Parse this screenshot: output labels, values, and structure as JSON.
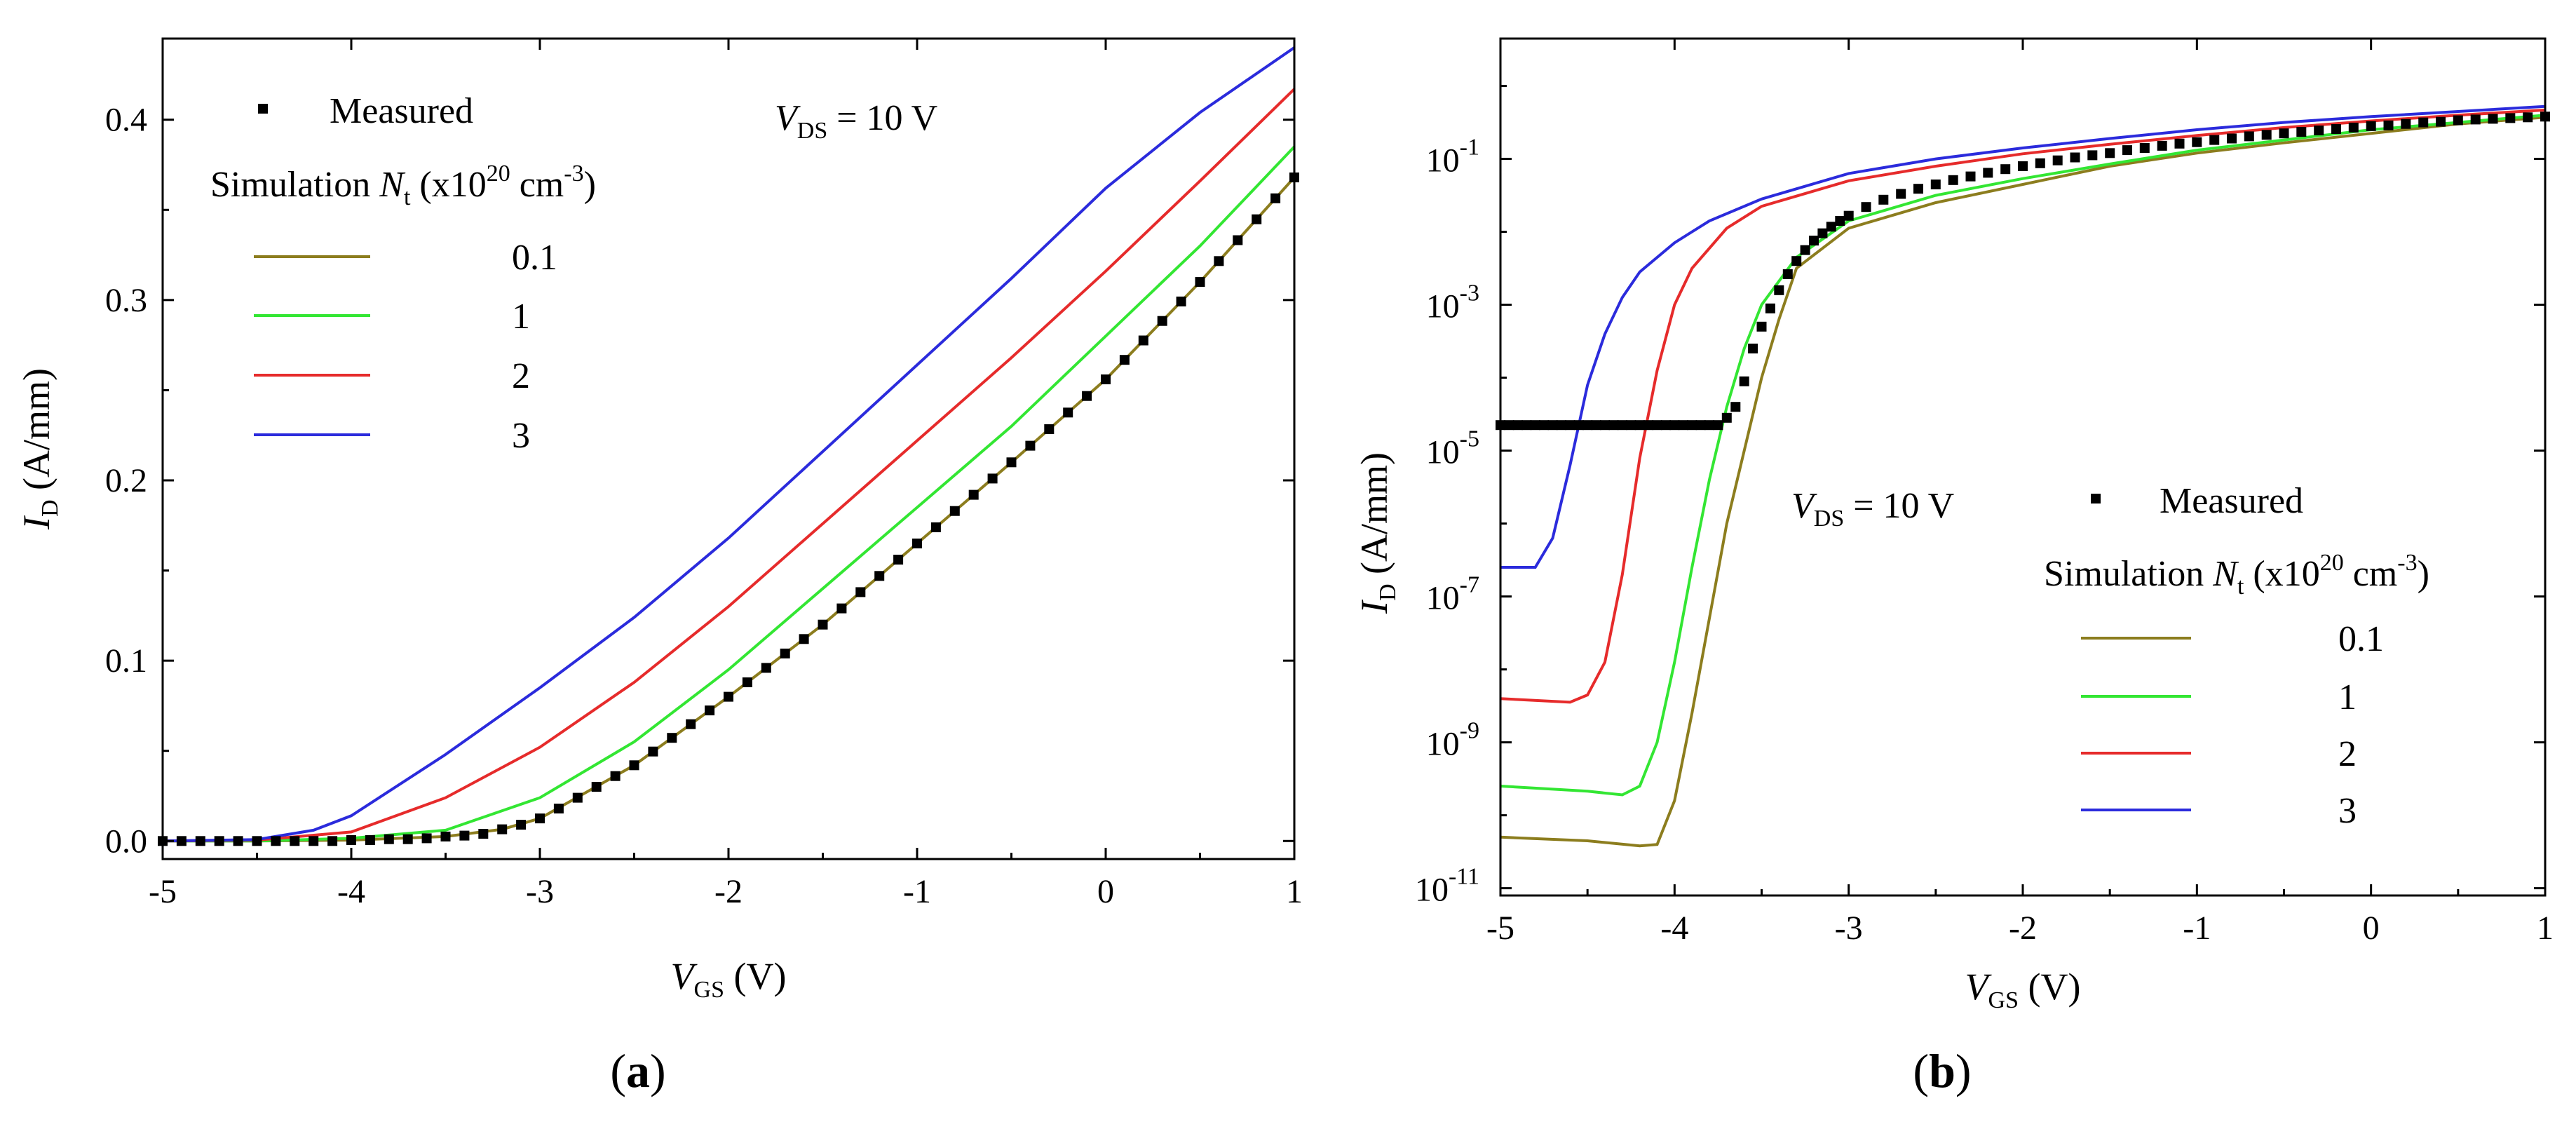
{
  "colors": {
    "s_0_1": "#8c7d1e",
    "s_1": "#33e633",
    "s_2": "#e62b2b",
    "s_3": "#2b2bdc",
    "measured": "#000000"
  },
  "chart_data": [
    {
      "id": "a",
      "type": "line",
      "panel_label_open": "(",
      "panel_label_letter": "a",
      "panel_label_close": ")",
      "xlabel_main": "V",
      "xlabel_sub": "GS",
      "xlabel_unit": " (V)",
      "ylabel_main": "I",
      "ylabel_sub": "D",
      "ylabel_unit": " (A/mm)",
      "xlim": [
        -5,
        1
      ],
      "ylim": [
        -0.01,
        0.445
      ],
      "yscale": "linear",
      "xticks": [
        -5,
        -4,
        -3,
        -2,
        -1,
        0,
        1
      ],
      "xtick_labels": [
        "-5",
        "-4",
        "-3",
        "-2",
        "-1",
        "0",
        "1"
      ],
      "yticks": [
        0.0,
        0.1,
        0.2,
        0.3,
        0.4
      ],
      "ytick_labels": [
        "0.0",
        "0.1",
        "0.2",
        "0.3",
        "0.4"
      ],
      "annotation": {
        "main": "V",
        "sub": "DS",
        "rest": " = 10 V"
      },
      "legend": {
        "measured_label": "Measured",
        "sim_prefix": "Simulation ",
        "sim_var": "N",
        "sim_var_sub": "t",
        "sim_unit_open": " (x10",
        "sim_unit_exp": "20",
        "sim_unit_cm": " cm",
        "sim_unit_cm_exp": "-3",
        "sim_unit_close": ")",
        "entries": [
          "0.1",
          "1",
          "2",
          "3"
        ]
      },
      "series": [
        {
          "name": "0.1",
          "color_key": "s_0_1",
          "x": [
            -5,
            -4.5,
            -4,
            -3.5,
            -3.2,
            -3,
            -2.5,
            -2,
            -1.5,
            -1,
            -0.5,
            0,
            0.5,
            1
          ],
          "values": [
            0.0,
            0.0,
            0.0005,
            0.0025,
            0.0065,
            0.0125,
            0.042,
            0.08,
            0.12,
            0.165,
            0.21,
            0.256,
            0.31,
            0.368
          ]
        },
        {
          "name": "1",
          "color_key": "s_1",
          "x": [
            -5,
            -4.5,
            -4,
            -3.5,
            -3,
            -2.5,
            -2,
            -1.5,
            -1,
            -0.5,
            0,
            0.5,
            1
          ],
          "values": [
            0.0,
            0.0,
            0.0015,
            0.006,
            0.024,
            0.055,
            0.095,
            0.14,
            0.185,
            0.23,
            0.28,
            0.33,
            0.385
          ]
        },
        {
          "name": "2",
          "color_key": "s_2",
          "x": [
            -5,
            -4.5,
            -4,
            -3.5,
            -3,
            -2.5,
            -2,
            -1.5,
            -1,
            -0.5,
            0,
            0.5,
            1
          ],
          "values": [
            0.0,
            0.0005,
            0.005,
            0.024,
            0.052,
            0.088,
            0.13,
            0.176,
            0.222,
            0.268,
            0.316,
            0.366,
            0.417
          ]
        },
        {
          "name": "3",
          "color_key": "s_3",
          "x": [
            -5,
            -4.5,
            -4.2,
            -4,
            -3.5,
            -3,
            -2.5,
            -2,
            -1.5,
            -1,
            -0.5,
            0,
            0.5,
            1
          ],
          "values": [
            0.0,
            0.0008,
            0.006,
            0.014,
            0.048,
            0.085,
            0.124,
            0.168,
            0.216,
            0.264,
            0.312,
            0.362,
            0.404,
            0.44
          ]
        }
      ],
      "measured": {
        "x": [
          -5.0,
          -4.9,
          -4.8,
          -4.7,
          -4.6,
          -4.5,
          -4.4,
          -4.3,
          -4.2,
          -4.1,
          -4.0,
          -3.9,
          -3.8,
          -3.7,
          -3.6,
          -3.5,
          -3.4,
          -3.3,
          -3.2,
          -3.1,
          -3.0,
          -2.9,
          -2.8,
          -2.7,
          -2.6,
          -2.5,
          -2.4,
          -2.3,
          -2.2,
          -2.1,
          -2.0,
          -1.9,
          -1.8,
          -1.7,
          -1.6,
          -1.5,
          -1.4,
          -1.3,
          -1.2,
          -1.1,
          -1.0,
          -0.9,
          -0.8,
          -0.7,
          -0.6,
          -0.5,
          -0.4,
          -0.3,
          -0.2,
          -0.1,
          0.0,
          0.1,
          0.2,
          0.3,
          0.4,
          0.5,
          0.6,
          0.7,
          0.8,
          0.9,
          1.0
        ],
        "values": [
          0.0,
          0.0,
          0.0,
          0.0,
          0.0,
          0.0,
          0.0,
          0.0,
          0.0,
          0.0,
          0.0005,
          0.0005,
          0.001,
          0.001,
          0.0015,
          0.0025,
          0.003,
          0.004,
          0.0065,
          0.009,
          0.0125,
          0.018,
          0.024,
          0.03,
          0.036,
          0.042,
          0.0496,
          0.0572,
          0.0648,
          0.0724,
          0.08,
          0.088,
          0.096,
          0.104,
          0.112,
          0.12,
          0.129,
          0.138,
          0.147,
          0.156,
          0.165,
          0.174,
          0.183,
          0.192,
          0.201,
          0.21,
          0.2192,
          0.2284,
          0.2376,
          0.2468,
          0.256,
          0.2668,
          0.2776,
          0.2884,
          0.2992,
          0.31,
          0.3216,
          0.3332,
          0.3448,
          0.3564,
          0.368
        ]
      }
    },
    {
      "id": "b",
      "type": "line",
      "panel_label_open": "(",
      "panel_label_letter": "b",
      "panel_label_close": ")",
      "xlabel_main": "V",
      "xlabel_sub": "GS",
      "xlabel_unit": " (V)",
      "ylabel_main": "I",
      "ylabel_sub": "D",
      "ylabel_unit": " (A/mm)",
      "xlim": [
        -5,
        1
      ],
      "ylim_log10": [
        -11.1,
        0.65
      ],
      "yscale": "log",
      "xticks": [
        -5,
        -4,
        -3,
        -2,
        -1,
        0,
        1
      ],
      "xtick_labels": [
        "-5",
        "-4",
        "-3",
        "-2",
        "-1",
        "0",
        "1"
      ],
      "yticks_log10": [
        -11,
        -9,
        -7,
        -5,
        -3,
        -1
      ],
      "ytick_base": "10",
      "ytick_exponents": [
        "-11",
        "-9",
        "-7",
        "-5",
        "-3",
        "-1"
      ],
      "annotation": {
        "main": "V",
        "sub": "DS",
        "rest": " = 10 V"
      },
      "legend": {
        "measured_label": "Measured",
        "sim_prefix": "Simulation ",
        "sim_var": "N",
        "sim_var_sub": "t",
        "sim_unit_open": " (x10",
        "sim_unit_exp": "20",
        "sim_unit_cm": " cm",
        "sim_unit_cm_exp": "-3",
        "sim_unit_close": ")",
        "entries": [
          "0.1",
          "1",
          "2",
          "3"
        ]
      },
      "series": [
        {
          "name": "0.1",
          "color_key": "s_0_1",
          "x": [
            -5,
            -4.5,
            -4.2,
            -4.1,
            -4.0,
            -3.9,
            -3.8,
            -3.7,
            -3.6,
            -3.5,
            -3.4,
            -3.3,
            -3.0,
            -2.5,
            -2,
            -1.5,
            -1,
            -0.5,
            0,
            0.5,
            1
          ],
          "log10": [
            -10.3,
            -10.35,
            -10.42,
            -10.4,
            -9.8,
            -8.6,
            -7.3,
            -6.0,
            -5.0,
            -4.0,
            -3.2,
            -2.5,
            -1.95,
            -1.6,
            -1.35,
            -1.1,
            -0.92,
            -0.78,
            -0.65,
            -0.52,
            -0.43
          ]
        },
        {
          "name": "1",
          "color_key": "s_1",
          "x": [
            -5,
            -4.5,
            -4.3,
            -4.2,
            -4.1,
            -4.0,
            -3.9,
            -3.8,
            -3.7,
            -3.6,
            -3.5,
            -3.3,
            -3.0,
            -2.5,
            -2,
            -1.5,
            -1,
            -0.5,
            0,
            0.5,
            1
          ],
          "log10": [
            -9.6,
            -9.67,
            -9.72,
            -9.6,
            -9.0,
            -7.9,
            -6.6,
            -5.4,
            -4.4,
            -3.6,
            -3.0,
            -2.35,
            -1.85,
            -1.5,
            -1.27,
            -1.07,
            -0.88,
            -0.74,
            -0.6,
            -0.5,
            -0.4
          ]
        },
        {
          "name": "2",
          "color_key": "s_2",
          "x": [
            -5,
            -4.6,
            -4.5,
            -4.4,
            -4.3,
            -4.2,
            -4.1,
            -4.0,
            -3.9,
            -3.7,
            -3.5,
            -3.0,
            -2.5,
            -2,
            -1.5,
            -1,
            -0.5,
            0,
            0.5,
            1
          ],
          "log10": [
            -8.4,
            -8.45,
            -8.35,
            -7.9,
            -6.7,
            -5.1,
            -3.9,
            -3.0,
            -2.5,
            -1.95,
            -1.65,
            -1.3,
            -1.1,
            -0.93,
            -0.8,
            -0.68,
            -0.57,
            -0.48,
            -0.4,
            -0.33
          ]
        },
        {
          "name": "3",
          "color_key": "s_3",
          "x": [
            -5,
            -4.8,
            -4.7,
            -4.6,
            -4.5,
            -4.4,
            -4.3,
            -4.2,
            -4.0,
            -3.8,
            -3.5,
            -3.0,
            -2.5,
            -2,
            -1.5,
            -1,
            -0.5,
            0,
            0.5,
            1
          ],
          "log10": [
            -6.6,
            -6.6,
            -6.2,
            -5.2,
            -4.1,
            -3.4,
            -2.9,
            -2.55,
            -2.15,
            -1.85,
            -1.55,
            -1.2,
            -1.0,
            -0.85,
            -0.72,
            -0.6,
            -0.5,
            -0.42,
            -0.35,
            -0.28
          ]
        }
      ],
      "measured": {
        "x": [
          -5.0,
          -4.95,
          -4.9,
          -4.85,
          -4.8,
          -4.75,
          -4.7,
          -4.65,
          -4.6,
          -4.55,
          -4.5,
          -4.45,
          -4.4,
          -4.35,
          -4.3,
          -4.25,
          -4.2,
          -4.15,
          -4.1,
          -4.05,
          -4.0,
          -3.95,
          -3.9,
          -3.85,
          -3.8,
          -3.75,
          -3.7,
          -3.65,
          -3.6,
          -3.55,
          -3.5,
          -3.45,
          -3.4,
          -3.35,
          -3.3,
          -3.25,
          -3.2,
          -3.15,
          -3.1,
          -3.05,
          -3.0,
          -2.9,
          -2.8,
          -2.7,
          -2.6,
          -2.5,
          -2.4,
          -2.3,
          -2.2,
          -2.1,
          -2.0,
          -1.9,
          -1.8,
          -1.7,
          -1.6,
          -1.5,
          -1.4,
          -1.3,
          -1.2,
          -1.1,
          -1.0,
          -0.9,
          -0.8,
          -0.7,
          -0.6,
          -0.5,
          -0.4,
          -0.3,
          -0.2,
          -0.1,
          0.0,
          0.1,
          0.2,
          0.3,
          0.4,
          0.5,
          0.6,
          0.7,
          0.8,
          0.9,
          1.0
        ],
        "log10": [
          -4.65,
          -4.65,
          -4.65,
          -4.65,
          -4.65,
          -4.65,
          -4.65,
          -4.65,
          -4.65,
          -4.65,
          -4.65,
          -4.65,
          -4.65,
          -4.65,
          -4.65,
          -4.65,
          -4.65,
          -4.65,
          -4.65,
          -4.65,
          -4.65,
          -4.65,
          -4.65,
          -4.65,
          -4.65,
          -4.65,
          -4.55,
          -4.4,
          -4.05,
          -3.6,
          -3.3,
          -3.05,
          -2.8,
          -2.58,
          -2.4,
          -2.25,
          -2.12,
          -2.02,
          -1.93,
          -1.85,
          -1.78,
          -1.66,
          -1.56,
          -1.48,
          -1.41,
          -1.35,
          -1.29,
          -1.24,
          -1.19,
          -1.14,
          -1.1,
          -1.06,
          -1.02,
          -0.98,
          -0.95,
          -0.92,
          -0.88,
          -0.85,
          -0.82,
          -0.79,
          -0.77,
          -0.74,
          -0.72,
          -0.69,
          -0.67,
          -0.65,
          -0.63,
          -0.61,
          -0.59,
          -0.57,
          -0.55,
          -0.54,
          -0.52,
          -0.5,
          -0.49,
          -0.47,
          -0.46,
          -0.45,
          -0.44,
          -0.43,
          -0.42
        ]
      }
    }
  ]
}
